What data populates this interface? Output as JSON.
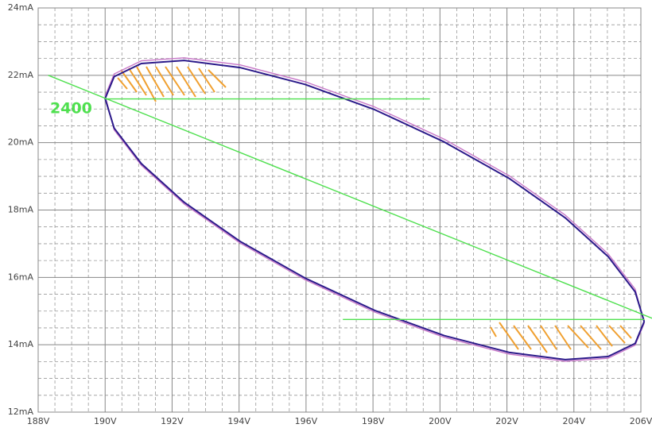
{
  "chart_data": {
    "type": "line",
    "xlim": [
      188,
      206
    ],
    "ylim": [
      12,
      24
    ],
    "xticks": [
      {
        "value": 188,
        "label": "188V"
      },
      {
        "value": 190,
        "label": "190V"
      },
      {
        "value": 192,
        "label": "192V"
      },
      {
        "value": 194,
        "label": "194V"
      },
      {
        "value": 196,
        "label": "196V"
      },
      {
        "value": 198,
        "label": "198V"
      },
      {
        "value": 200,
        "label": "200V"
      },
      {
        "value": 202,
        "label": "202V"
      },
      {
        "value": 204,
        "label": "204V"
      },
      {
        "value": 206,
        "label": "206V"
      }
    ],
    "yticks": [
      {
        "value": 12,
        "label": "12mA"
      },
      {
        "value": 14,
        "label": "14mA"
      },
      {
        "value": 16,
        "label": "16mA"
      },
      {
        "value": 18,
        "label": "18mA"
      },
      {
        "value": 20,
        "label": "20mA"
      },
      {
        "value": 22,
        "label": "22mA"
      },
      {
        "value": 24,
        "label": "24mA"
      }
    ],
    "grid": true,
    "annotation": "2400",
    "series": [
      {
        "color": "#c878c8",
        "x": [
          206.1,
          205.83,
          205.02,
          203.74,
          202.08,
          200.13,
          198.05,
          195.97,
          194.03,
          192.36,
          191.08,
          190.27,
          190.0,
          190.27,
          191.08,
          192.36,
          194.03,
          195.97,
          198.05,
          200.13,
          202.08,
          203.74,
          205.02,
          205.83,
          206.1
        ],
        "values": [
          14.64,
          13.99,
          13.6,
          13.51,
          13.72,
          14.22,
          14.97,
          15.93,
          17.02,
          18.18,
          19.33,
          20.38,
          21.39,
          22.04,
          22.43,
          22.52,
          22.31,
          21.81,
          21.06,
          20.1,
          19.01,
          17.85,
          16.7,
          15.65,
          14.64
        ]
      },
      {
        "color": "#2b1a8a",
        "x": [
          206.1,
          205.83,
          205.02,
          203.74,
          202.08,
          200.13,
          198.05,
          195.97,
          194.03,
          192.36,
          191.08,
          190.27,
          190.0,
          190.27,
          191.08,
          192.36,
          194.03,
          195.97,
          198.05,
          200.13,
          202.08,
          203.74,
          205.02,
          205.83,
          206.1
        ],
        "values": [
          14.69,
          14.04,
          13.65,
          13.56,
          13.77,
          14.27,
          15.02,
          15.98,
          17.07,
          18.23,
          19.38,
          20.43,
          21.31,
          21.96,
          22.35,
          22.44,
          22.23,
          21.73,
          20.98,
          20.02,
          18.93,
          17.77,
          16.62,
          15.57,
          14.69
        ]
      },
      {
        "color": "#4fe04f",
        "x": [
          188.3,
          206.6
        ],
        "values": [
          22.0,
          14.68
        ]
      },
      {
        "color": "#4fe04f",
        "x": [
          190.0,
          199.7
        ],
        "values": [
          21.3,
          21.3
        ]
      },
      {
        "color": "#4fe04f",
        "x": [
          197.1,
          206.1
        ],
        "values": [
          14.75,
          14.75
        ]
      }
    ]
  }
}
